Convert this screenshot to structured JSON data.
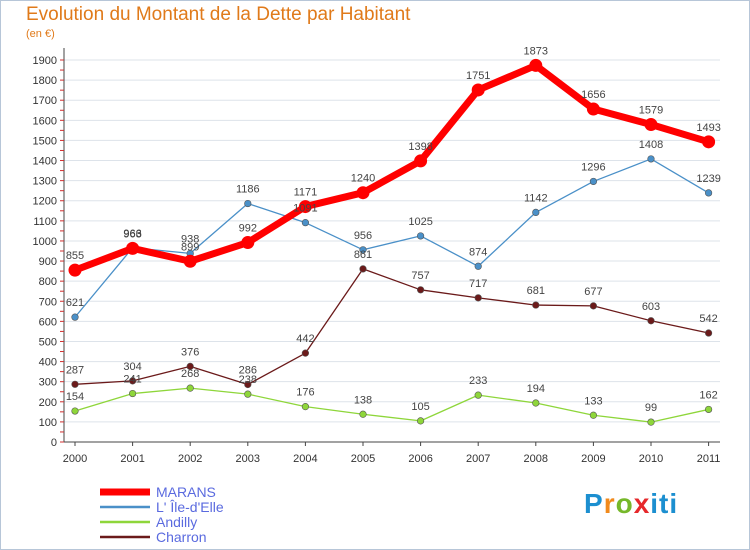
{
  "title": "Evolution du Montant de la Dette par Habitant",
  "subtitle": "(en €)",
  "logo": "Proxiti",
  "chart_data": {
    "type": "line",
    "title": "Evolution du Montant de la Dette par Habitant",
    "subtitle": "(en €)",
    "x": [
      "2000",
      "2001",
      "2002",
      "2003",
      "2004",
      "2005",
      "2006",
      "2007",
      "2008",
      "2009",
      "2010",
      "2011"
    ],
    "ylim": [
      0,
      1900
    ],
    "yticks": [
      0,
      100,
      200,
      300,
      400,
      500,
      600,
      700,
      800,
      900,
      1000,
      1100,
      1200,
      1300,
      1400,
      1500,
      1600,
      1700,
      1800,
      1900
    ],
    "grid": true,
    "legend": "bottom-left",
    "series": [
      {
        "name": "MARANS",
        "color": "#ff0000",
        "values": [
          855,
          963,
          899,
          992,
          1171,
          1240,
          1398,
          1751,
          1873,
          1656,
          1579,
          1493
        ]
      },
      {
        "name": "L' Île-d'Elle",
        "color": "#4a90c8",
        "values": [
          621,
          966,
          938,
          1186,
          1091,
          956,
          1025,
          874,
          1142,
          1296,
          1408,
          1239
        ]
      },
      {
        "name": "Andilly",
        "color": "#8ed63a",
        "values": [
          154,
          241,
          268,
          238,
          176,
          138,
          105,
          233,
          194,
          133,
          99,
          162
        ]
      },
      {
        "name": "Charron",
        "color": "#6b1a1a",
        "values": [
          287,
          304,
          376,
          286,
          442,
          861,
          757,
          717,
          681,
          677,
          603,
          542
        ]
      }
    ]
  }
}
